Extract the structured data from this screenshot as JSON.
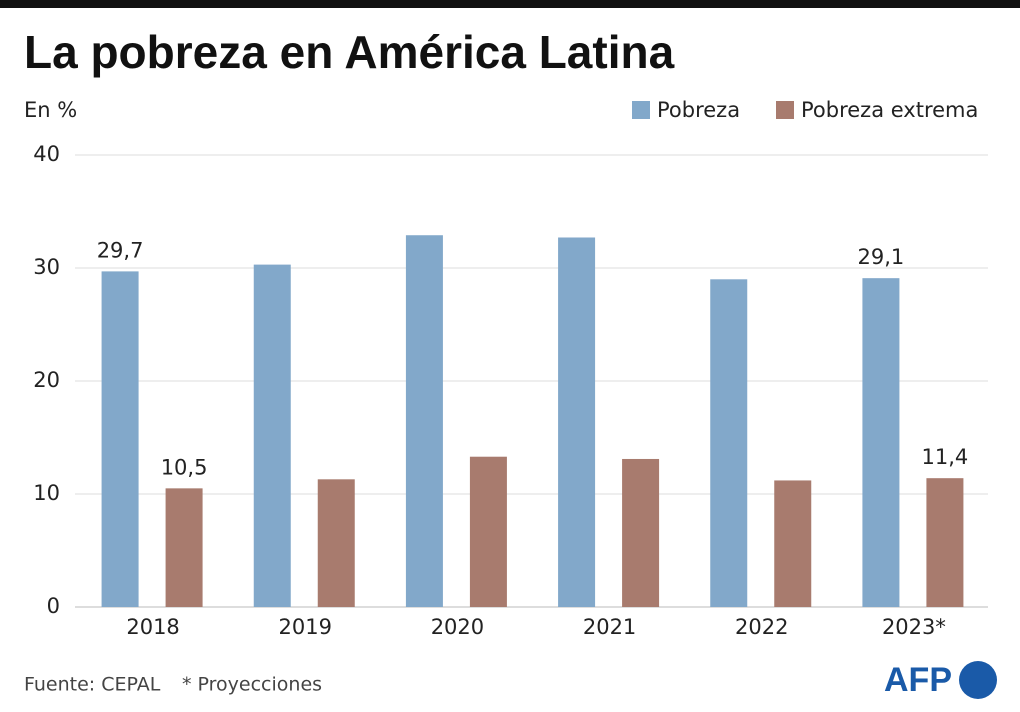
{
  "chart_data": {
    "type": "bar",
    "title": "La pobreza en América Latina",
    "subtitle": "En %",
    "categories": [
      "2018",
      "2019",
      "2020",
      "2021",
      "2022",
      "2023*"
    ],
    "series": [
      {
        "name": "Pobreza",
        "color": "#82a8ca",
        "values": [
          29.7,
          30.3,
          32.9,
          32.7,
          29.0,
          29.1
        ],
        "value_labels": [
          "29,7",
          null,
          null,
          null,
          null,
          "29,1"
        ]
      },
      {
        "name": "Pobreza extrema",
        "color": "#a87b6e",
        "values": [
          10.5,
          11.3,
          13.3,
          13.1,
          11.2,
          11.4
        ],
        "value_labels": [
          "10,5",
          null,
          null,
          null,
          null,
          "11,4"
        ]
      }
    ],
    "ylim": [
      0,
      40
    ],
    "yticks": [
      0,
      10,
      20,
      30,
      40
    ],
    "grid": true,
    "legend": "top-right",
    "source": "Fuente: CEPAL",
    "note": "* Proyecciones",
    "logo": "AFP"
  }
}
